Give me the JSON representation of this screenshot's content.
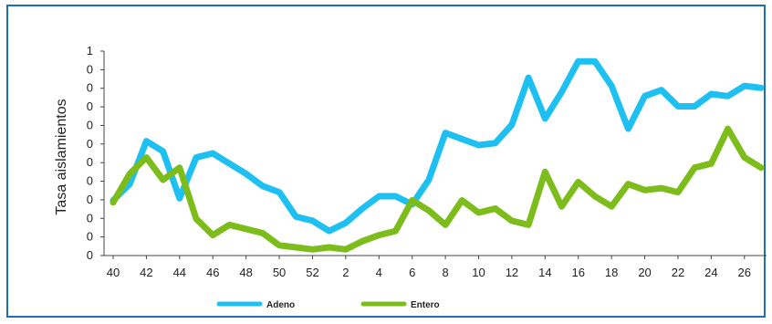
{
  "chart_data": {
    "type": "line",
    "title": "",
    "xlabel": "",
    "ylabel": "Tasa aislamientos",
    "x": [
      "40",
      "41",
      "42",
      "43",
      "44",
      "45",
      "46",
      "47",
      "48",
      "49",
      "50",
      "51",
      "52",
      "1",
      "2",
      "3",
      "4",
      "5",
      "6",
      "7",
      "8",
      "9",
      "10",
      "11",
      "12",
      "13",
      "14",
      "15",
      "16",
      "17",
      "18",
      "19",
      "20",
      "21",
      "22",
      "23",
      "24",
      "25",
      "26",
      "27"
    ],
    "x_tick_labels": [
      "40",
      "42",
      "44",
      "46",
      "48",
      "50",
      "52",
      "2",
      "4",
      "6",
      "8",
      "10",
      "12",
      "14",
      "16",
      "18",
      "20",
      "22",
      "24",
      "26"
    ],
    "y_tick_labels": [
      "0",
      "0",
      "0",
      "0",
      "0",
      "0",
      "0",
      "0",
      "0",
      "0",
      "0",
      "1"
    ],
    "ylim": [
      0,
      1
    ],
    "series": [
      {
        "name": "Adeno",
        "color": "#1ec0f2",
        "values": [
          0.27,
          0.35,
          0.56,
          0.51,
          0.28,
          0.48,
          0.5,
          0.45,
          0.4,
          0.34,
          0.31,
          0.19,
          0.17,
          0.12,
          0.16,
          0.23,
          0.29,
          0.29,
          0.25,
          0.37,
          0.6,
          0.57,
          0.54,
          0.55,
          0.64,
          0.87,
          0.67,
          0.8,
          0.95,
          0.95,
          0.83,
          0.62,
          0.78,
          0.81,
          0.73,
          0.73,
          0.79,
          0.78,
          0.83,
          0.82
        ]
      },
      {
        "name": "Entero",
        "color": "#7cbd1c",
        "values": [
          0.26,
          0.4,
          0.48,
          0.37,
          0.43,
          0.18,
          0.1,
          0.15,
          0.13,
          0.11,
          0.05,
          0.04,
          0.03,
          0.04,
          0.03,
          0.07,
          0.1,
          0.12,
          0.27,
          0.22,
          0.15,
          0.27,
          0.21,
          0.23,
          0.17,
          0.15,
          0.41,
          0.24,
          0.36,
          0.29,
          0.24,
          0.35,
          0.32,
          0.33,
          0.31,
          0.43,
          0.45,
          0.62,
          0.48,
          0.43
        ]
      }
    ],
    "legend_position": "bottom-left",
    "grid": false
  }
}
